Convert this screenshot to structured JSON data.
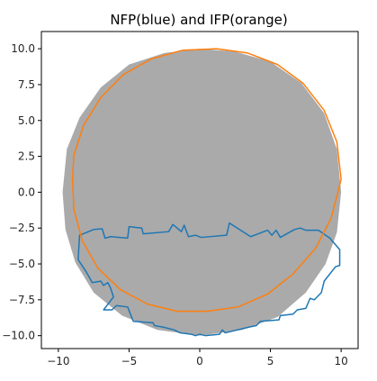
{
  "chart_data": {
    "type": "line",
    "title": "NFP(blue) and IFP(orange)",
    "xlim": [
      -11.2,
      11.2
    ],
    "ylim": [
      -10.9,
      11.2
    ],
    "x_ticks": [
      -10,
      -5,
      0,
      5,
      10
    ],
    "x_tick_labels": [
      "−10",
      "−5",
      "0",
      "5",
      "10"
    ],
    "y_ticks": [
      10.0,
      7.5,
      5.0,
      2.5,
      0.0,
      -2.5,
      -5.0,
      -7.5,
      -10.0
    ],
    "y_tick_labels": [
      "10.0",
      "7.5",
      "5.0",
      "2.5",
      "0.0",
      "−2.5",
      "−5.0",
      "−7.5",
      "−10.0"
    ],
    "grid": false,
    "shaded_region": {
      "name": "",
      "color": "#aaaaaa",
      "shape": "disk",
      "points": [
        [
          -9.7,
          0.0
        ],
        [
          -9.4,
          3.0
        ],
        [
          -8.5,
          5.2
        ],
        [
          -7.0,
          7.3
        ],
        [
          -5.0,
          8.9
        ],
        [
          -2.5,
          9.7
        ],
        [
          0.0,
          10.0
        ],
        [
          2.5,
          9.8
        ],
        [
          5.0,
          9.1
        ],
        [
          7.2,
          7.6
        ],
        [
          8.8,
          5.5
        ],
        [
          9.7,
          3.0
        ],
        [
          10.0,
          0.0
        ],
        [
          9.7,
          -2.8
        ],
        [
          8.9,
          -5.0
        ],
        [
          7.5,
          -7.0
        ],
        [
          5.5,
          -8.7
        ],
        [
          3.0,
          -9.6
        ],
        [
          0.0,
          -10.0
        ],
        [
          -3.0,
          -9.6
        ],
        [
          -5.5,
          -8.6
        ],
        [
          -7.5,
          -7.0
        ],
        [
          -8.8,
          -4.9
        ],
        [
          -9.5,
          -2.6
        ]
      ]
    },
    "series": [
      {
        "name": "",
        "color": "#1f77b4",
        "closed": true,
        "points": [
          [
            -8.5,
            -3.0
          ],
          [
            -7.5,
            -2.6
          ],
          [
            -6.9,
            -2.55
          ],
          [
            -6.7,
            -3.2
          ],
          [
            -6.3,
            -3.1
          ],
          [
            -5.1,
            -3.2
          ],
          [
            -5.0,
            -2.4
          ],
          [
            -4.1,
            -2.5
          ],
          [
            -4.0,
            -2.9
          ],
          [
            -2.2,
            -2.75
          ],
          [
            -1.9,
            -2.25
          ],
          [
            -1.3,
            -2.75
          ],
          [
            -1.1,
            -2.3
          ],
          [
            -0.8,
            -3.1
          ],
          [
            -0.3,
            -3.0
          ],
          [
            0.1,
            -3.15
          ],
          [
            1.9,
            -3.0
          ],
          [
            2.1,
            -2.15
          ],
          [
            3.6,
            -3.1
          ],
          [
            4.8,
            -2.65
          ],
          [
            5.1,
            -3.0
          ],
          [
            5.4,
            -2.65
          ],
          [
            5.7,
            -3.15
          ],
          [
            6.7,
            -2.6
          ],
          [
            7.1,
            -2.5
          ],
          [
            7.5,
            -2.65
          ],
          [
            8.4,
            -2.65
          ],
          [
            9.2,
            -3.2
          ],
          [
            9.9,
            -4.0
          ],
          [
            9.9,
            -5.1
          ],
          [
            9.6,
            -5.2
          ],
          [
            8.8,
            -6.2
          ],
          [
            8.6,
            -7.0
          ],
          [
            8.1,
            -7.5
          ],
          [
            7.8,
            -7.4
          ],
          [
            7.5,
            -8.1
          ],
          [
            6.9,
            -8.2
          ],
          [
            6.6,
            -8.5
          ],
          [
            5.7,
            -8.6
          ],
          [
            5.6,
            -8.9
          ],
          [
            4.3,
            -9.0
          ],
          [
            4.0,
            -9.3
          ],
          [
            3.5,
            -9.4
          ],
          [
            1.8,
            -9.8
          ],
          [
            1.6,
            -9.6
          ],
          [
            1.4,
            -9.9
          ],
          [
            0.4,
            -10.0
          ],
          [
            0.0,
            -9.9
          ],
          [
            -0.3,
            -10.0
          ],
          [
            -0.6,
            -9.9
          ],
          [
            -1.4,
            -9.8
          ],
          [
            -1.8,
            -9.6
          ],
          [
            -2.6,
            -9.4
          ],
          [
            -3.2,
            -9.3
          ],
          [
            -3.3,
            -9.1
          ],
          [
            -4.7,
            -9.0
          ],
          [
            -5.1,
            -8.0
          ],
          [
            -5.9,
            -7.9
          ],
          [
            -6.2,
            -8.2
          ],
          [
            -6.8,
            -8.2
          ],
          [
            -6.1,
            -7.3
          ],
          [
            -6.3,
            -6.7
          ],
          [
            -6.5,
            -6.3
          ],
          [
            -6.8,
            -6.5
          ],
          [
            -7.0,
            -6.2
          ],
          [
            -7.6,
            -6.3
          ],
          [
            -8.0,
            -5.6
          ],
          [
            -8.4,
            -5.0
          ],
          [
            -8.6,
            -4.7
          ]
        ]
      },
      {
        "name": "",
        "color": "#ff7f0e",
        "closed": true,
        "points": [
          [
            10.0,
            0.9
          ],
          [
            9.7,
            3.5
          ],
          [
            8.8,
            5.7
          ],
          [
            7.3,
            7.6
          ],
          [
            5.5,
            8.9
          ],
          [
            3.4,
            9.7
          ],
          [
            1.2,
            10.0
          ],
          [
            -1.2,
            9.9
          ],
          [
            -3.4,
            9.3
          ],
          [
            -5.4,
            8.2
          ],
          [
            -7.0,
            6.6
          ],
          [
            -8.2,
            4.7
          ],
          [
            -8.9,
            2.6
          ],
          [
            -9.0,
            0.9
          ],
          [
            -8.9,
            -1.2
          ],
          [
            -8.3,
            -3.4
          ],
          [
            -7.2,
            -5.3
          ],
          [
            -5.6,
            -6.8
          ],
          [
            -3.7,
            -7.8
          ],
          [
            -1.6,
            -8.3
          ],
          [
            0.5,
            -8.3
          ],
          [
            2.7,
            -8.0
          ],
          [
            4.8,
            -7.1
          ],
          [
            6.6,
            -5.7
          ],
          [
            8.2,
            -3.9
          ],
          [
            9.3,
            -1.8
          ]
        ]
      }
    ]
  }
}
